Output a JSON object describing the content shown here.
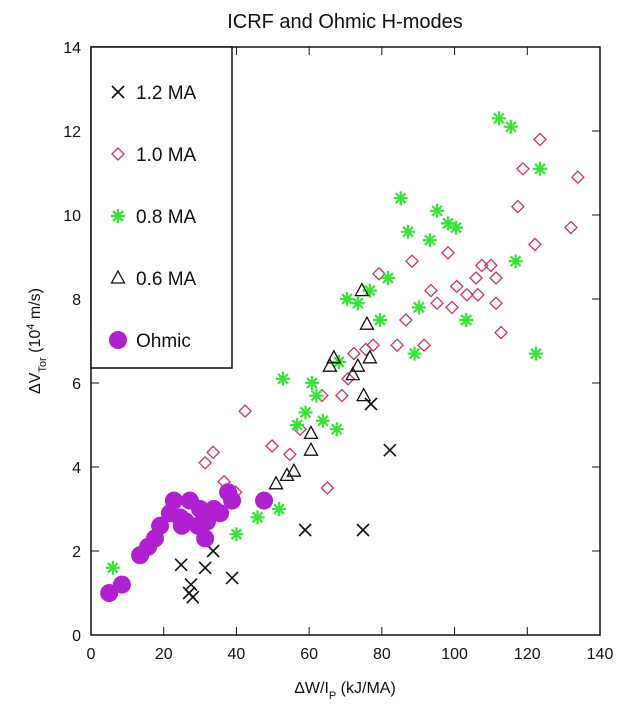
{
  "chart_data": {
    "type": "scatter",
    "title": "ICRF and Ohmic H-modes",
    "xlabel": [
      "ΔW/I",
      "P",
      " (kJ/MA)"
    ],
    "ylabel": [
      "ΔV",
      "Tor",
      " (10",
      "4",
      " m/s)"
    ],
    "xlim": [
      0,
      140
    ],
    "ylim": [
      0,
      14
    ],
    "xticks": [
      0,
      20,
      40,
      60,
      80,
      100,
      120,
      140
    ],
    "yticks": [
      0,
      2,
      4,
      6,
      8,
      10,
      12,
      14
    ],
    "grid": false,
    "legend": "upper left",
    "series": [
      {
        "name": "1.2 MA",
        "color": "#111111",
        "marker": "x",
        "x": [
          24.8,
          27,
          28,
          27.5,
          31.4,
          33.6,
          38.8,
          58.9,
          74.8,
          82.2,
          77
        ],
        "values": [
          1.67,
          1.0,
          0.9,
          1.2,
          1.6,
          2.0,
          1.36,
          2.5,
          2.5,
          4.4,
          5.5
        ]
      },
      {
        "name": "1.0 MA",
        "color": "#c8336a",
        "marker": "diamond",
        "x": [
          31.4,
          33.6,
          36.6,
          42.4,
          49.8,
          54.7,
          57.5,
          63.5,
          69,
          70.7,
          72.3,
          75.6,
          77.6,
          79.2,
          84.2,
          86.6,
          88.3,
          91.6,
          93.5,
          95.2,
          98.2,
          99.3,
          100.6,
          103.4,
          105.9,
          106.4,
          107.5,
          110,
          111.4,
          111.4,
          112.8,
          117.4,
          118.8,
          122.1,
          123.5,
          132,
          133.9,
          65,
          39.8
        ],
        "values": [
          4.1,
          4.35,
          3.65,
          5.33,
          4.5,
          4.3,
          4.9,
          5.7,
          5.7,
          6.1,
          6.7,
          6.8,
          6.9,
          8.6,
          6.9,
          7.5,
          8.9,
          6.9,
          8.2,
          7.9,
          9.1,
          7.8,
          8.3,
          8.1,
          8.5,
          8.1,
          8.8,
          8.8,
          8.5,
          7.9,
          7.2,
          10.2,
          11.1,
          9.3,
          11.8,
          9.7,
          10.9,
          3.5,
          3.4
        ]
      },
      {
        "name": "0.8 MA",
        "color": "#33e633",
        "marker": "asterisk",
        "x": [
          6,
          40,
          45.8,
          51.7,
          52.8,
          56.7,
          59,
          60.8,
          62,
          63.8,
          67.6,
          68.2,
          70.4,
          73.4,
          76.7,
          79.5,
          81.7,
          85.2,
          87.2,
          90.2,
          93.2,
          95.2,
          98.2,
          100.4,
          103.2,
          112.2,
          115.5,
          116.8,
          123.5,
          122.4,
          89
        ],
        "values": [
          1.6,
          2.4,
          2.8,
          3.0,
          6.1,
          5.0,
          5.3,
          6.0,
          5.7,
          5.1,
          4.9,
          6.5,
          8.0,
          7.9,
          8.2,
          7.5,
          8.5,
          10.4,
          9.6,
          7.8,
          9.4,
          10.1,
          9.8,
          9.7,
          7.5,
          12.3,
          12.1,
          8.9,
          11.1,
          6.7,
          6.7
        ]
      },
      {
        "name": "0.6 MA",
        "color": "#111111",
        "marker": "triangle",
        "x": [
          50.9,
          53.9,
          55.8,
          60.5,
          60.5,
          65.7,
          66.8,
          72,
          73.4,
          74.5,
          75.9,
          75,
          76.7
        ],
        "values": [
          3.6,
          3.8,
          3.9,
          4.4,
          4.8,
          6.4,
          6.6,
          6.2,
          6.4,
          8.2,
          7.4,
          5.7,
          6.6
        ]
      },
      {
        "name": "Ohmic",
        "color": "#b020d0",
        "marker": "circle",
        "x": [
          5,
          8.5,
          13.5,
          15.7,
          17.6,
          19,
          21.7,
          22.8,
          24.5,
          27.2,
          26.1,
          29.4,
          30,
          31.9,
          33.8,
          35.5,
          37.7,
          38.8,
          47.6,
          25,
          31.4
        ],
        "values": [
          1.0,
          1.2,
          1.9,
          2.1,
          2.3,
          2.6,
          2.9,
          3.2,
          2.8,
          3.2,
          2.7,
          2.6,
          3.0,
          2.7,
          3.0,
          2.9,
          3.4,
          3.2,
          3.2,
          2.6,
          2.3
        ]
      }
    ]
  }
}
